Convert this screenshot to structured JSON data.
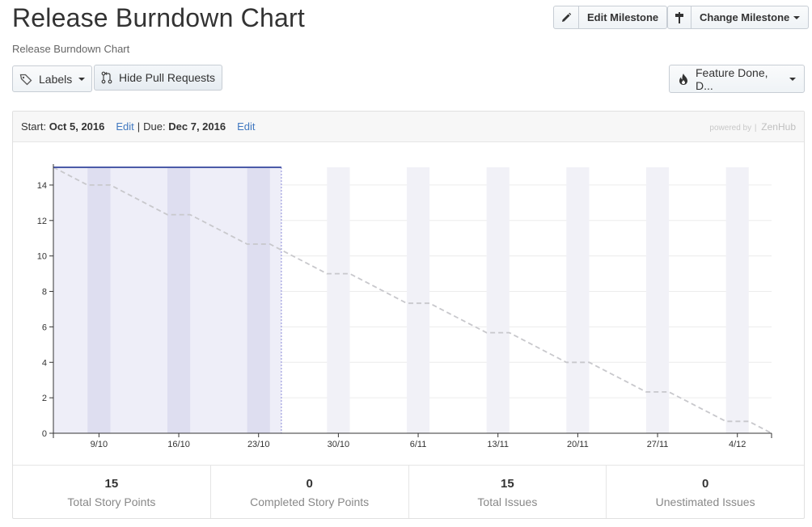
{
  "header": {
    "title": "Release Burndown Chart",
    "subtitle": "Release Burndown Chart"
  },
  "toolbar": {
    "edit_milestone": "Edit Milestone",
    "change_milestone": "Change Milestone",
    "labels": "Labels",
    "hide_pull_requests": "Hide Pull Requests",
    "filter": "Feature Done, D..."
  },
  "panel": {
    "start_label": "Start:",
    "start_date": "Oct 5, 2016",
    "edit": "Edit",
    "separator": "|",
    "due_label": "Due:",
    "due_date": "Dec 7, 2016",
    "powered_by": "powered by",
    "powered_brand": "ZenHub"
  },
  "stats": [
    {
      "value": "15",
      "label": "Total Story Points"
    },
    {
      "value": "0",
      "label": "Completed Story Points"
    },
    {
      "value": "15",
      "label": "Total Issues"
    },
    {
      "value": "0",
      "label": "Unestimated Issues"
    }
  ],
  "chart_data": {
    "type": "line",
    "title": "",
    "xlabel": "",
    "ylabel": "",
    "x_range": [
      "2016-10-05",
      "2016-12-07"
    ],
    "ylim": [
      0,
      15
    ],
    "y_ticks": [
      0,
      2,
      4,
      6,
      8,
      10,
      12,
      14
    ],
    "x_ticks": [
      {
        "date": "2016-10-09",
        "label": "9/10"
      },
      {
        "date": "2016-10-16",
        "label": "16/10"
      },
      {
        "date": "2016-10-23",
        "label": "23/10"
      },
      {
        "date": "2016-10-30",
        "label": "30/10"
      },
      {
        "date": "2016-11-06",
        "label": "6/11"
      },
      {
        "date": "2016-11-13",
        "label": "13/11"
      },
      {
        "date": "2016-11-20",
        "label": "20/11"
      },
      {
        "date": "2016-11-27",
        "label": "27/11"
      },
      {
        "date": "2016-12-04",
        "label": "4/12"
      }
    ],
    "elapsed_until": "2016-10-25",
    "weekend_bands": [
      [
        "2016-10-08",
        "2016-10-10"
      ],
      [
        "2016-10-15",
        "2016-10-17"
      ],
      [
        "2016-10-22",
        "2016-10-24"
      ],
      [
        "2016-10-29",
        "2016-10-31"
      ],
      [
        "2016-11-05",
        "2016-11-07"
      ],
      [
        "2016-11-12",
        "2016-11-14"
      ],
      [
        "2016-11-19",
        "2016-11-21"
      ],
      [
        "2016-11-26",
        "2016-11-28"
      ],
      [
        "2016-12-03",
        "2016-12-05"
      ]
    ],
    "series": [
      {
        "style": "dashed",
        "color": "#c8c8cc",
        "points": [
          [
            "2016-10-05",
            15
          ],
          [
            "2016-10-08",
            14.0
          ],
          [
            "2016-10-10",
            14.0
          ],
          [
            "2016-10-15",
            12.33
          ],
          [
            "2016-10-17",
            12.33
          ],
          [
            "2016-10-22",
            10.67
          ],
          [
            "2016-10-24",
            10.67
          ],
          [
            "2016-10-29",
            9.0
          ],
          [
            "2016-10-31",
            9.0
          ],
          [
            "2016-11-05",
            7.33
          ],
          [
            "2016-11-07",
            7.33
          ],
          [
            "2016-11-12",
            5.67
          ],
          [
            "2016-11-14",
            5.67
          ],
          [
            "2016-11-19",
            4.0
          ],
          [
            "2016-11-21",
            4.0
          ],
          [
            "2016-11-26",
            2.33
          ],
          [
            "2016-11-28",
            2.33
          ],
          [
            "2016-12-03",
            0.67
          ],
          [
            "2016-12-05",
            0.67
          ],
          [
            "2016-12-07",
            0
          ]
        ]
      },
      {
        "style": "solid",
        "color": "#4b5aa8",
        "points": [
          [
            "2016-10-05",
            15
          ],
          [
            "2016-10-25",
            15
          ]
        ]
      }
    ],
    "colors": {
      "elapsed_fill": "#eeeef8",
      "elapsed_band": "#dedef0",
      "future_band": "#f1f1f7",
      "today_line": "#8a8ad8",
      "grid": "#ececec",
      "axis": "#333333"
    }
  }
}
